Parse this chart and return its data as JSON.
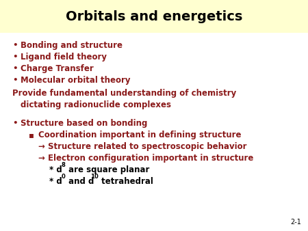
{
  "title": "Orbitals and energetics",
  "title_bg_color": "#FFFFD0",
  "title_fontsize": 14,
  "body_fontsize": 8.5,
  "small_fontsize": 6.0,
  "title_color": "#000000",
  "background_color": "#FFFFFF",
  "dark_red": "#8B1A1A",
  "olive": "#6B6B00",
  "black": "#000000",
  "slide_number": "2-1",
  "bullet_items": [
    "Bonding and structure",
    "Ligand field theory",
    "Charge Transfer",
    "Molecular orbital theory"
  ],
  "plain_line1": "Provide fundamental understanding of chemistry",
  "plain_line2": "    dictating radionuclide complexes",
  "bullet2": "Structure based on bonding",
  "sub_bullet": "Coordination important in defining structure",
  "arrow1": "→ Structure related to spectroscopic behavior",
  "arrow2": "→ Electron configuration important in structure",
  "slide_number_fontsize": 7
}
